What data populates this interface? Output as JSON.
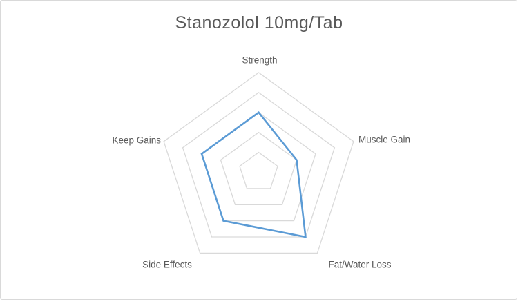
{
  "chart_data": {
    "type": "radar",
    "title": "Stanozolol 10mg/Tab",
    "categories": [
      "Strength",
      "Muscle Gain",
      "Fat/Water Loss",
      "Side Effects",
      "Keep Gains"
    ],
    "series": [
      {
        "name": "Stanozolol 10mg/Tab",
        "values": [
          3,
          2,
          4,
          3,
          3
        ]
      }
    ],
    "scale": {
      "min": 0,
      "max": 5,
      "major_unit": 1,
      "rings": 5
    },
    "legend": "none",
    "grid": true,
    "tick_labels_visible": false,
    "radial_spokes_visible": false,
    "colors": {
      "series_line": "#5b9bd5",
      "gridline": "#d9d9d9",
      "title_text": "#595959",
      "label_text": "#595959",
      "frame_border": "#d9d9d9",
      "background": "#ffffff"
    }
  }
}
